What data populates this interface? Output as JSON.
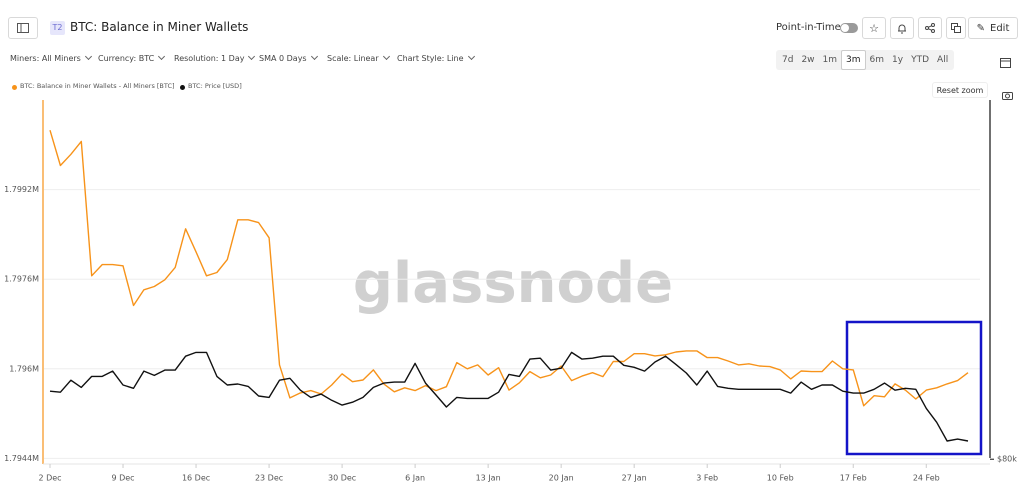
{
  "header": {
    "badge": "T2",
    "title": "BTC: Balance in Miner Wallets",
    "point_in_time": "Point-in-Time",
    "edit": "Edit"
  },
  "filters": [
    "Miners: All Miners",
    "Currency: BTC",
    "Resolution: 1 Day",
    "SMA 0 Days",
    "Scale: Linear",
    "Chart Style: Line"
  ],
  "ranges": [
    "7d",
    "2w",
    "1m",
    "3m",
    "6m",
    "1y",
    "YTD",
    "All"
  ],
  "active_range": "3m",
  "reset_zoom": "Reset zoom",
  "watermark": "glassnode",
  "chart_data": {
    "type": "line",
    "categories": [
      "2 Dec",
      null,
      null,
      null,
      null,
      null,
      null,
      "9 Dec",
      null,
      null,
      null,
      null,
      null,
      null,
      "16 Dec",
      null,
      null,
      null,
      null,
      null,
      null,
      "23 Dec",
      null,
      null,
      null,
      null,
      null,
      null,
      "30 Dec",
      null,
      null,
      null,
      null,
      null,
      null,
      "6 Jan",
      null,
      null,
      null,
      null,
      null,
      null,
      "13 Jan",
      null,
      null,
      null,
      null,
      null,
      null,
      "20 Jan",
      null,
      null,
      null,
      null,
      null,
      null,
      "27 Jan",
      null,
      null,
      null,
      null,
      null,
      null,
      "3 Feb",
      null,
      null,
      null,
      null,
      null,
      null,
      "10 Feb",
      null,
      null,
      null,
      null,
      null,
      null,
      "17 Feb",
      null,
      null,
      null,
      null,
      null,
      null,
      "24 Feb",
      null,
      null,
      null,
      null
    ],
    "series": [
      {
        "name": "BTC: Balance in Miner Wallets - All Miners [BTC]",
        "color": "#f7931a",
        "values": [
          1800260,
          1799630,
          1799830,
          1800060,
          1797660,
          1797860,
          1797860,
          1797840,
          1797130,
          1797410,
          1797470,
          1797590,
          1797810,
          1798500,
          1798090,
          1797660,
          1797720,
          1797950,
          1798660,
          1798660,
          1798610,
          1798340,
          1796070,
          1795480,
          1795570,
          1795610,
          1795550,
          1795710,
          1795910,
          1795770,
          1795800,
          1795980,
          1795730,
          1795590,
          1795660,
          1795610,
          1795700,
          1795610,
          1795680,
          1796110,
          1796000,
          1796070,
          1795890,
          1796020,
          1795620,
          1795750,
          1795950,
          1795840,
          1795890,
          1796050,
          1795790,
          1795870,
          1795930,
          1795860,
          1796130,
          1796130,
          1796270,
          1796270,
          1796230,
          1796250,
          1796300,
          1796320,
          1796320,
          1796200,
          1796200,
          1796140,
          1796070,
          1796090,
          1796050,
          1796040,
          1795980,
          1795820,
          1795960,
          1795950,
          1795950,
          1796140,
          1796000,
          1795980,
          1795340,
          1795520,
          1795500,
          1795730,
          1795620,
          1795460,
          1795620,
          1795660,
          1795730,
          1795790,
          1795930
        ]
      },
      {
        "name": "BTC: Price [USD]",
        "color": "#111111",
        "axis": "y2",
        "values": [
          94200,
          94000,
          96500,
          95000,
          97300,
          97300,
          98400,
          95500,
          94800,
          98400,
          97500,
          98600,
          98600,
          101500,
          102300,
          102300,
          97300,
          95500,
          95700,
          95200,
          93200,
          92900,
          96500,
          96900,
          94400,
          92900,
          93600,
          92300,
          91300,
          91900,
          92900,
          95000,
          95900,
          96100,
          96100,
          100000,
          95900,
          93400,
          90900,
          92900,
          92700,
          92700,
          92700,
          94000,
          97700,
          97300,
          100900,
          101100,
          98600,
          99000,
          102300,
          100900,
          101100,
          101500,
          101500,
          99600,
          99200,
          98400,
          100300,
          101500,
          99800,
          98000,
          95500,
          98400,
          95200,
          94800,
          94600,
          94600,
          94600,
          94600,
          94600,
          93800,
          96100,
          94600,
          95500,
          95500,
          94200,
          93800,
          93800,
          94600,
          95900,
          94400,
          94800,
          94600,
          90600,
          87700,
          83800,
          84200,
          83800
        ]
      }
    ],
    "ylim": [
      1794300,
      1800800
    ],
    "yticks": [
      {
        "value": 1794400,
        "label": "1.7944M"
      },
      {
        "value": 1796000,
        "label": "1.796M"
      },
      {
        "value": 1797600,
        "label": "1.7976M"
      },
      {
        "value": 1799200,
        "label": "1.7992M"
      }
    ],
    "y2lim": [
      79000,
      155000
    ],
    "y2ticks": [
      {
        "value": 80000,
        "label": "$80k"
      }
    ],
    "grid": true
  }
}
